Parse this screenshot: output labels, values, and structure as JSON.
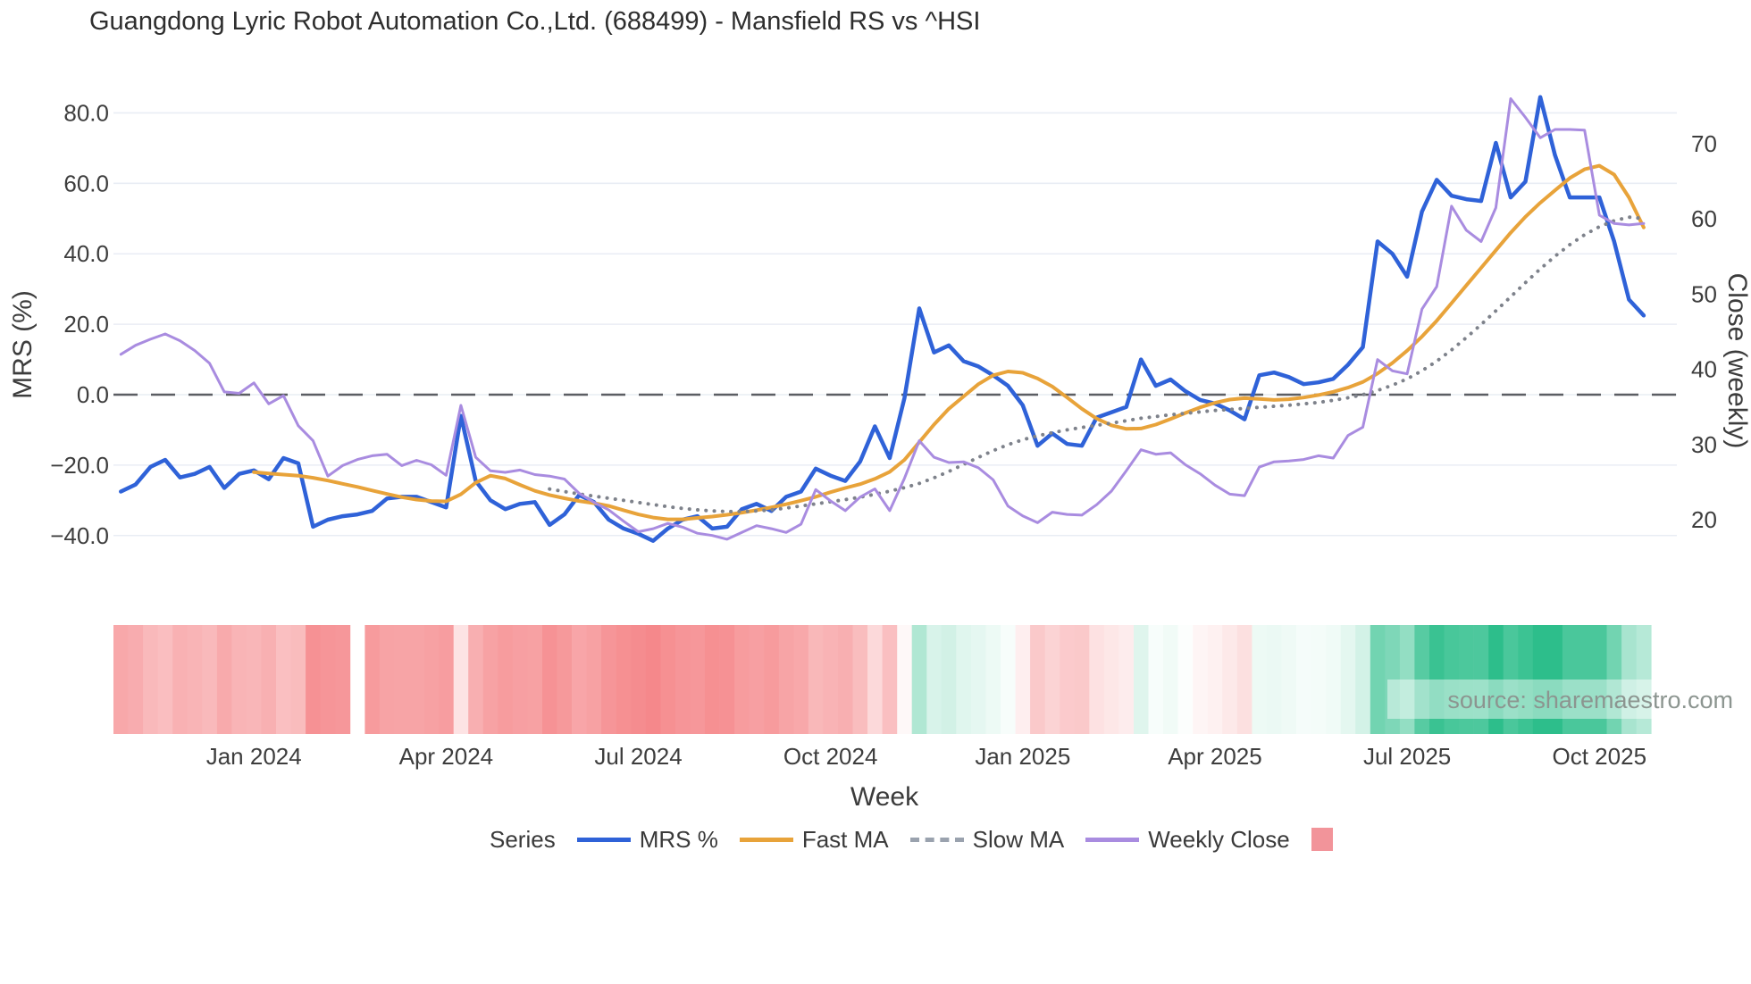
{
  "chart_data": {
    "type": "line",
    "title": "Guangdong Lyric Robot Automation Co.,Ltd. (688499) - Mansfield RS vs ^HSI",
    "source_text": "source: sharemaestro.com",
    "left_axis": {
      "title": "MRS (%)",
      "tick_values": [
        80,
        60,
        40,
        20,
        0,
        -20,
        -40
      ],
      "tick_labels": [
        "80.0",
        "60.0",
        "40.0",
        "20.0",
        "0.0",
        "−20.0",
        "−40.0"
      ]
    },
    "right_axis": {
      "title": "Close (weekly)",
      "tick_values": [
        70,
        60,
        50,
        40,
        30,
        20
      ],
      "tick_labels": [
        "70",
        "60",
        "50",
        "40",
        "30",
        "20"
      ]
    },
    "x_axis": {
      "title": "Week",
      "tick_weeks": [
        9,
        22,
        35,
        48,
        61,
        74,
        87,
        100
      ],
      "tick_labels": [
        "Jan 2024",
        "Apr 2024",
        "Jul 2024",
        "Oct 2024",
        "Jan 2025",
        "Apr 2025",
        "Jul 2025",
        "Oct 2025"
      ]
    },
    "weeks_total": 104,
    "zero_line": {
      "value": 0,
      "color": "#5b5e63"
    },
    "grid_color": "#e9edf4",
    "series": [
      {
        "name": "MRS %",
        "axis": "left",
        "color": "#2f62d8",
        "width": 4.5,
        "style": "solid",
        "start_week": 0,
        "values": [
          -27.5,
          -25.5,
          -20.5,
          -18.5,
          -23.5,
          -22.5,
          -20.5,
          -26.5,
          -22.5,
          -21.5,
          -24,
          -18,
          -19.5,
          -37.5,
          -35.5,
          -34.5,
          -34,
          -33,
          -29.5,
          -29,
          -29,
          -30.5,
          -32,
          -6,
          -24.5,
          -30,
          -32.5,
          -31,
          -30.5,
          -37,
          -34,
          -28.5,
          -30.5,
          -35.5,
          -38,
          -39.5,
          -41.5,
          -38,
          -35.5,
          -34.5,
          -38,
          -37.5,
          -32.5,
          -31,
          -33,
          -29,
          -27.5,
          -21,
          -23,
          -24.5,
          -19,
          -9,
          -18,
          -1,
          24.5,
          12,
          14,
          9.5,
          8,
          5.5,
          2.5,
          -3,
          -14.5,
          -11,
          -14,
          -14.5,
          -6.5,
          -5,
          -3.5,
          10,
          2.5,
          4.3,
          1,
          -1.5,
          -2.5,
          -4.5,
          -7,
          5.5,
          6.3,
          5,
          3,
          3.5,
          4.5,
          8.5,
          13.5,
          43.5,
          40,
          33.5,
          52,
          61,
          56.5,
          55.5,
          55,
          71.5,
          56,
          60.5,
          84.5,
          68,
          56,
          56,
          56,
          43.5,
          27,
          22.5
        ]
      },
      {
        "name": "Fast MA",
        "axis": "left",
        "color": "#e8a33a",
        "width": 4,
        "style": "solid",
        "start_week": 9,
        "values": [
          -22,
          -22.4,
          -22.7,
          -23,
          -23.6,
          -24.4,
          -25.3,
          -26.2,
          -27.2,
          -28.2,
          -29.1,
          -29.8,
          -30.2,
          -30.3,
          -28.3,
          -25,
          -23,
          -23.8,
          -25.6,
          -27.3,
          -28.5,
          -29.4,
          -30.2,
          -30.8,
          -31.6,
          -32.8,
          -34,
          -34.9,
          -35.4,
          -35.4,
          -35,
          -34.6,
          -34.1,
          -33.5,
          -32.8,
          -32,
          -31.1,
          -30.1,
          -29,
          -27.7,
          -26.5,
          -25.4,
          -23.9,
          -21.9,
          -18.5,
          -13.5,
          -8.5,
          -4,
          -0.5,
          3,
          5.5,
          6.6,
          6.2,
          4.6,
          2.3,
          -0.8,
          -4,
          -6.8,
          -8.7,
          -9.7,
          -9.6,
          -8.5,
          -6.9,
          -5.2,
          -3.6,
          -2.3,
          -1.4,
          -1,
          -1.2,
          -1.5,
          -1.3,
          -0.8,
          -0.1,
          0.8,
          2,
          3.6,
          6,
          9,
          12.5,
          16.5,
          21,
          26,
          31,
          36,
          41,
          46,
          50.5,
          54.5,
          58,
          61.5,
          64,
          65,
          62.5,
          56,
          47.5
        ]
      },
      {
        "name": "Slow MA",
        "axis": "left",
        "color": "#7e828b",
        "width": 4,
        "style": "dotted",
        "start_week": 29,
        "values": [
          -26.8,
          -27.5,
          -28.2,
          -28.8,
          -29.4,
          -30,
          -30.6,
          -31.2,
          -31.8,
          -32.3,
          -32.7,
          -33,
          -33.2,
          -33.2,
          -33,
          -32.7,
          -32.2,
          -31.6,
          -31,
          -30.4,
          -29.8,
          -29.1,
          -28.3,
          -27.4,
          -26.4,
          -25.2,
          -23.6,
          -21.8,
          -19.8,
          -17.8,
          -15.9,
          -14.2,
          -12.8,
          -11.7,
          -10.8,
          -10,
          -9.3,
          -8.7,
          -8.1,
          -7.4,
          -6.7,
          -6.2,
          -5.7,
          -5.3,
          -4.9,
          -4.5,
          -4.2,
          -3.9,
          -3.6,
          -3.3,
          -3,
          -2.6,
          -2.2,
          -1.6,
          -0.9,
          0,
          1.2,
          2.7,
          4.5,
          6.8,
          9.5,
          12.7,
          16.2,
          19.9,
          23.8,
          27.8,
          31.8,
          35.7,
          39.3,
          42.6,
          45.4,
          47.7,
          49.4,
          50.4,
          50
        ]
      },
      {
        "name": "Weekly Close",
        "axis": "right",
        "color": "#a98ce0",
        "width": 3,
        "style": "solid",
        "start_week": 0,
        "values": [
          42,
          43.2,
          44,
          44.7,
          43.8,
          42.5,
          40.8,
          37,
          36.8,
          38.2,
          35.4,
          36.5,
          32.5,
          30.5,
          25.8,
          27.2,
          28,
          28.5,
          28.7,
          27.2,
          27.9,
          27.3,
          25.9,
          35.2,
          28.3,
          26.5,
          26.3,
          26.6,
          26,
          25.8,
          25.4,
          23.5,
          22.3,
          21.3,
          19.8,
          18.4,
          18.8,
          19.5,
          19,
          18.2,
          17.9,
          17.4,
          18.3,
          19.2,
          18.8,
          18.3,
          19.4,
          24,
          22.5,
          21.2,
          23,
          24.1,
          21.2,
          25.5,
          30.5,
          28.3,
          27.6,
          27.7,
          26.9,
          25.3,
          21.8,
          20.5,
          19.6,
          21,
          20.7,
          20.6,
          22,
          23.8,
          26.5,
          29.3,
          28.7,
          28.9,
          27.3,
          26.1,
          24.6,
          23.4,
          23.2,
          27,
          27.7,
          27.8,
          28,
          28.5,
          28.2,
          31.2,
          32.3,
          41.3,
          39.8,
          39.4,
          48,
          51,
          61.7,
          58.5,
          57,
          61.5,
          76,
          73.5,
          70.8,
          71.9,
          71.9,
          71.8,
          60.5,
          59.4,
          59.2,
          59.4
        ]
      }
    ],
    "heatmap": {
      "based_on": "MRS %",
      "missing_week": 16,
      "positive_color": "#2dbe8b",
      "negative_color": "#f58789",
      "positive_clip": 65,
      "negative_clip": 42
    },
    "legend": {
      "title": "Series",
      "entries": [
        {
          "label": "MRS %",
          "swatch": "line",
          "color": "#2f62d8"
        },
        {
          "label": "Fast MA",
          "swatch": "line",
          "color": "#e8a33a"
        },
        {
          "label": "Slow MA",
          "swatch": "dotted",
          "color": "#9aa2ae"
        },
        {
          "label": "Weekly Close",
          "swatch": "line",
          "color": "#a98ce0"
        },
        {
          "label": "",
          "swatch": "square",
          "color": "#f2949a"
        }
      ]
    }
  }
}
